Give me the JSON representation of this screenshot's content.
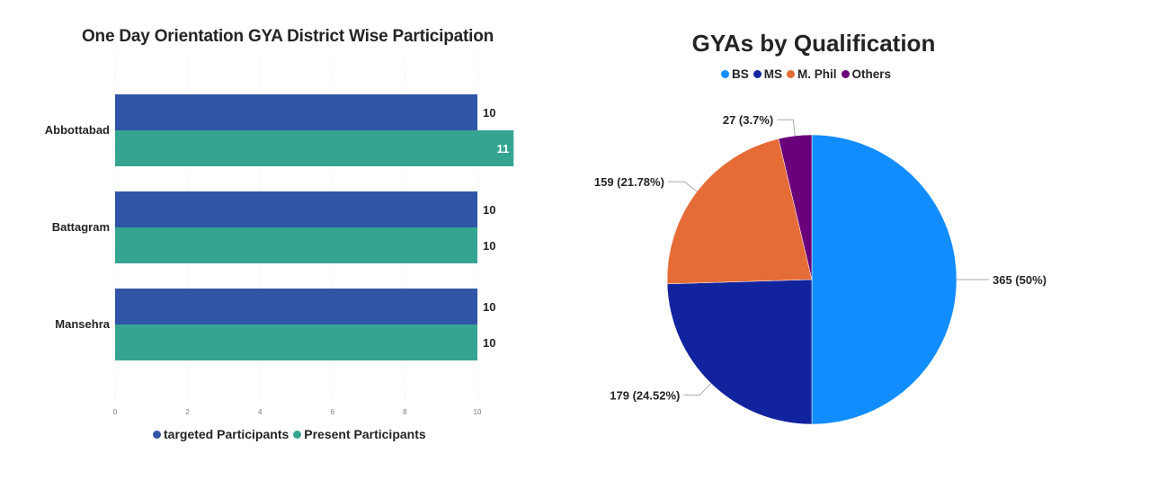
{
  "bar_chart_title": "One Day Orientation GYA District Wise Participation",
  "pie_chart_title": "GYAs by Qualification",
  "chart_data": [
    {
      "type": "bar",
      "orientation": "horizontal",
      "title": "One Day Orientation GYA District Wise Participation",
      "categories": [
        "Abbottabad",
        "Battagram",
        "Mansehra"
      ],
      "series": [
        {
          "name": "targeted Participants",
          "color": "#3155A6",
          "values": [
            10,
            10,
            10
          ]
        },
        {
          "name": "Present Participants",
          "color": "#35A592",
          "values": [
            11,
            10,
            10
          ]
        }
      ],
      "xlim": [
        0,
        10
      ],
      "xticks": [
        0,
        2,
        4,
        6,
        8,
        10
      ],
      "grid": true,
      "legend_position": "bottom"
    },
    {
      "type": "pie",
      "title": "GYAs by Qualification",
      "slices": [
        {
          "label": "BS",
          "value": 365,
          "display": "365 (50%)",
          "color": "#118DFF"
        },
        {
          "label": "MS",
          "value": 179,
          "display": "179 (24.52%)",
          "color": "#12239E"
        },
        {
          "label": "M. Phil",
          "value": 159,
          "display": "159 (21.78%)",
          "color": "#E66C37"
        },
        {
          "label": "Others",
          "value": 27,
          "display": "27 (3.7%)",
          "color": "#6B007B"
        }
      ],
      "legend_position": "top"
    }
  ]
}
